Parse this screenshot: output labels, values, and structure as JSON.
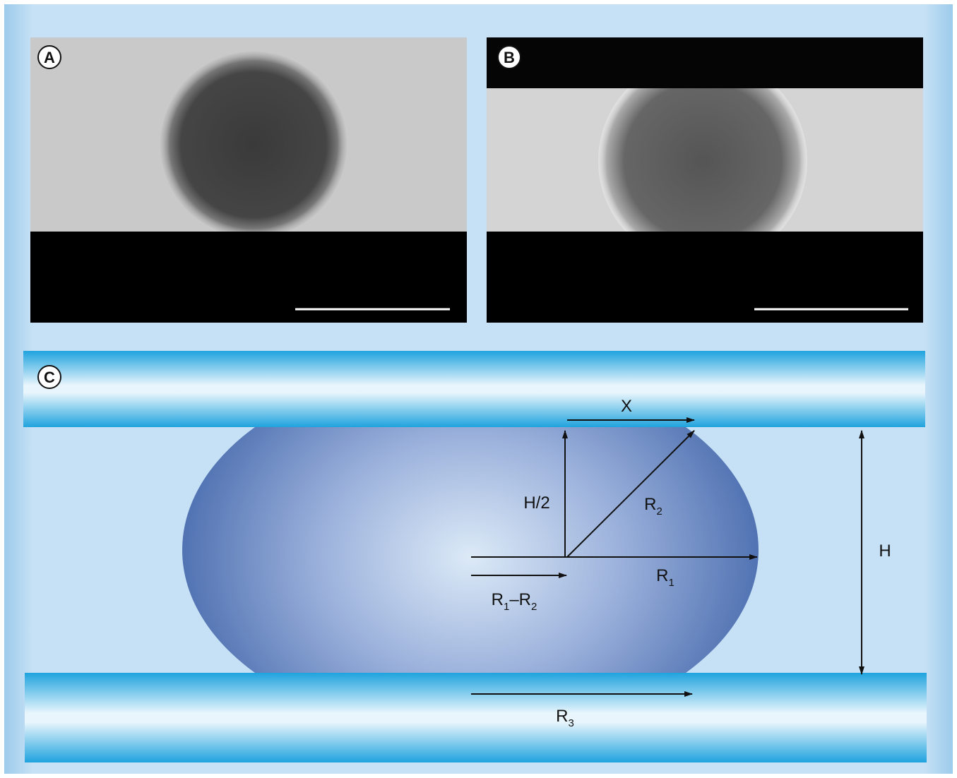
{
  "panels": {
    "a": "A",
    "b": "B",
    "c": "C"
  },
  "labels": {
    "x": [
      "X"
    ],
    "half_h": [
      "H/2"
    ],
    "r2": [
      "R",
      "2"
    ],
    "r1": [
      "R",
      "1"
    ],
    "r1_minus_r2": [
      "R",
      "1",
      "–R",
      "2"
    ],
    "h": [
      "H"
    ],
    "r3": [
      "R",
      "3"
    ]
  }
}
